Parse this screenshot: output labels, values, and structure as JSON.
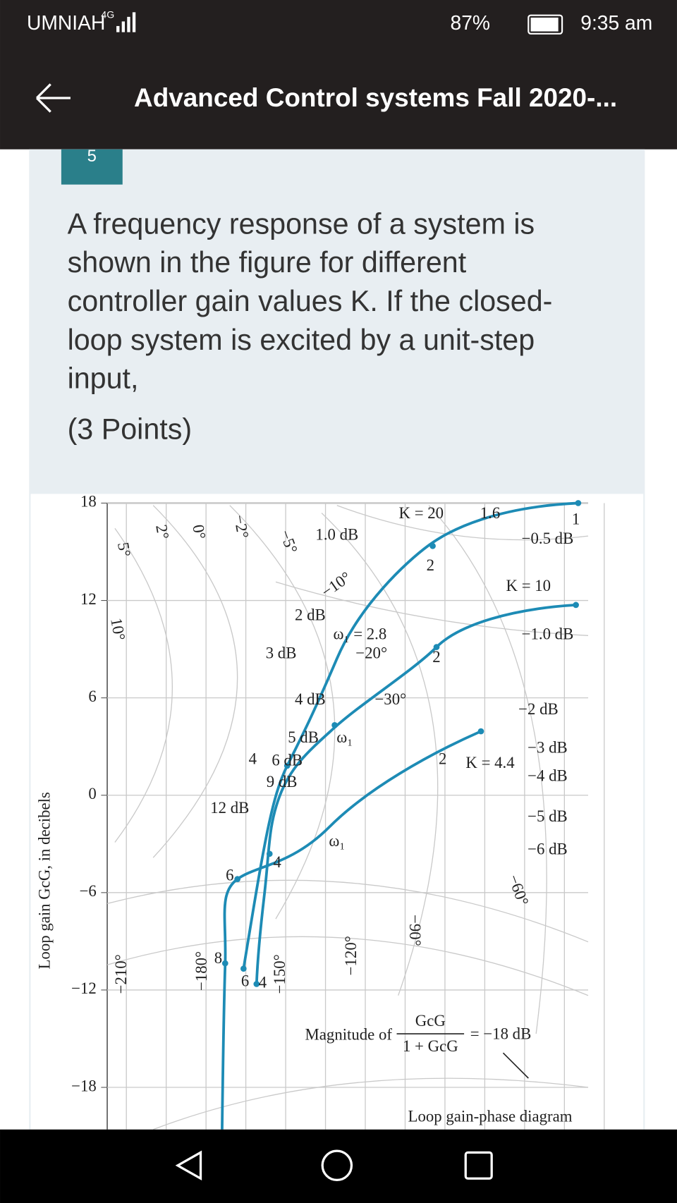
{
  "status_bar": {
    "carrier": "UMNIAH",
    "network": "4G",
    "battery": "87%",
    "time": "9:35 am"
  },
  "header": {
    "title": "Advanced Control systems Fall 2020-..."
  },
  "question": {
    "number": "5",
    "lines": [
      "A frequency response of a system is",
      "shown in the figure for different",
      "controller gain values K. If the closed-",
      "loop system is excited by a unit-step",
      "input,"
    ],
    "points": "(3 Points)"
  },
  "figure": {
    "y_axis_label": "Loop gain GcG, in decibels",
    "y_ticks": [
      "18",
      "12",
      "6",
      "0",
      "−6",
      "−12",
      "−18"
    ],
    "annotations": [
      "K = 20",
      "1.6",
      "1",
      "1.0 dB",
      "−0.5 dB",
      "2",
      "K = 10",
      "−10°",
      "2 dB",
      "ω₁ = 2.8",
      "−1.0 dB",
      "3 dB",
      "−20°",
      "2",
      "4 dB",
      "−30°",
      "−2 dB",
      "5 dB",
      "ω₁",
      "−3 dB",
      "4",
      "6 dB",
      "2",
      "K = 4.4",
      "−4 dB",
      "9 dB",
      "12 dB",
      "−5 dB",
      "ω₁",
      "−6 dB",
      "4",
      "6",
      "−60°",
      "−90°",
      "−210°",
      "−180°",
      "−150°",
      "−120°",
      "8",
      "6",
      "4",
      "5°",
      "2°",
      "0°",
      "−2°",
      "−5°",
      "10°"
    ],
    "fraction": {
      "prefix": "Magnitude of",
      "numerator": "GcG",
      "denominator": "1 + GcG",
      "suffix": "= −18 dB"
    },
    "caption": "Loop gain-phase diagram"
  }
}
